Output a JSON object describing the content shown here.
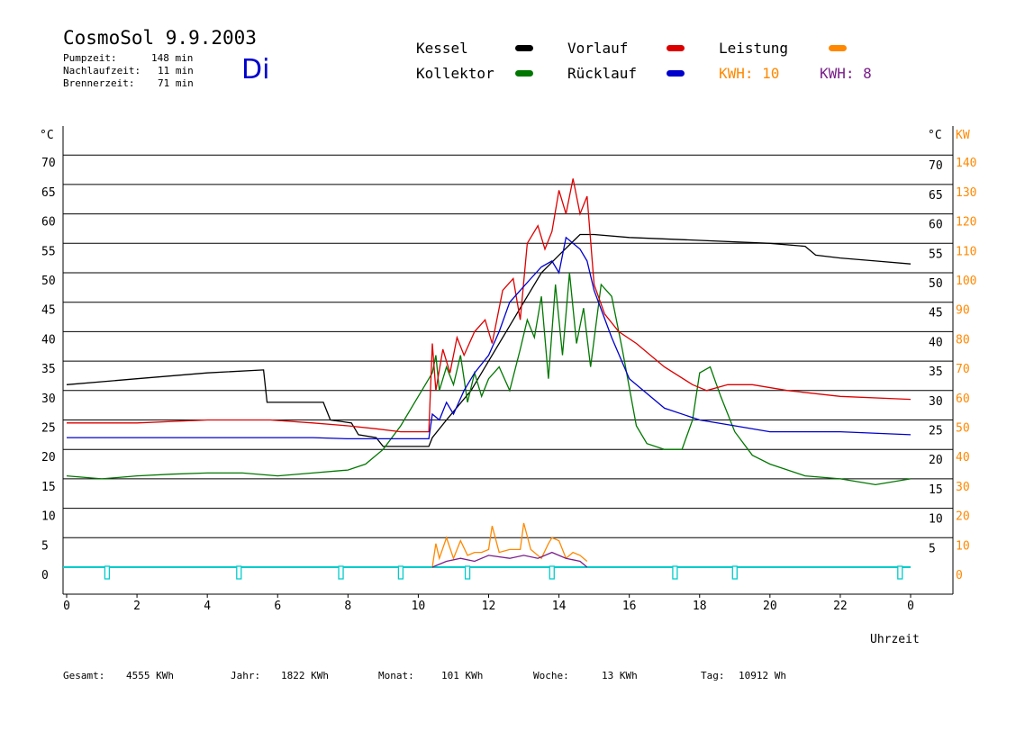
{
  "header": {
    "title": "CosmoSol 9.9.2003",
    "day": "Di",
    "stats": [
      {
        "label": "Pumpzeit:",
        "value": "148 min"
      },
      {
        "label": "Nachlaufzeit:",
        "value": "11 min"
      },
      {
        "label": "Brennerzeit:",
        "value": "71 min"
      }
    ]
  },
  "legend": {
    "kessel": "Kessel",
    "kollektor": "Kollektor",
    "vorlauf": "Vorlauf",
    "ruecklauf": "Rücklauf",
    "leistung": "Leistung",
    "kwh1": "KWH: 10",
    "kwh2": "KWH: 8"
  },
  "colors": {
    "kessel": "#000000",
    "kollektor": "#007700",
    "vorlauf": "#dd0000",
    "ruecklauf": "#0000cc",
    "leistung": "#ff8800",
    "kwh2": "#7a1f8a",
    "pump": "#00cccc"
  },
  "footer": [
    {
      "label": "Gesamt:",
      "value": "4555 KWh"
    },
    {
      "label": "Jahr:",
      "value": "1822 KWh"
    },
    {
      "label": "Monat:",
      "value": "101 KWh"
    },
    {
      "label": "Woche:",
      "value": "13 KWh"
    },
    {
      "label": "Tag:",
      "value": "10912 Wh"
    }
  ],
  "chart_data": {
    "type": "line",
    "xlabel": "Uhrzeit",
    "xlim": [
      0,
      24
    ],
    "x_ticks": [
      "0",
      "2",
      "4",
      "6",
      "8",
      "10",
      "12",
      "14",
      "16",
      "18",
      "20",
      "22",
      "0"
    ],
    "ylim": [
      0,
      75
    ],
    "y_ticks_left": [
      0,
      5,
      10,
      15,
      20,
      25,
      30,
      35,
      40,
      45,
      50,
      55,
      60,
      65,
      70
    ],
    "y_unit_left": "°C",
    "y_ticks_right_c": [
      5,
      10,
      15,
      20,
      25,
      30,
      35,
      40,
      45,
      50,
      55,
      60,
      65,
      70
    ],
    "y_unit_right_c": "°C",
    "y2_ticks_kw": [
      0,
      10,
      20,
      30,
      40,
      50,
      60,
      70,
      80,
      90,
      100,
      110,
      120,
      130,
      140
    ],
    "y2_unit": "KW",
    "grid": true,
    "series": [
      {
        "name": "Kessel",
        "x": [
          0,
          2,
          4,
          5.6,
          5.7,
          7.3,
          7.5,
          8.1,
          8.3,
          8.8,
          9.0,
          9.6,
          10.3,
          10.4,
          10.8,
          11.5,
          12.0,
          12.5,
          13.0,
          13.5,
          14.0,
          14.6,
          15.0,
          16.0,
          18.0,
          20.0,
          21.0,
          21.3,
          22.0,
          23.0,
          24.0
        ],
        "y": [
          31,
          32,
          33,
          33.5,
          28,
          28,
          25,
          24.5,
          22.5,
          22,
          20.5,
          20.5,
          20.5,
          22,
          25,
          30,
          35,
          40,
          45,
          50,
          53,
          56.5,
          56.5,
          56,
          55.5,
          55,
          54.5,
          53,
          52.5,
          52,
          51.5
        ]
      },
      {
        "name": "Kollektor",
        "x": [
          0,
          1,
          2,
          3,
          4,
          5,
          6,
          7,
          8,
          8.5,
          9,
          9.5,
          10,
          10.2,
          10.4,
          10.5,
          10.6,
          10.8,
          11,
          11.2,
          11.4,
          11.6,
          11.8,
          12,
          12.3,
          12.6,
          12.9,
          13.1,
          13.3,
          13.5,
          13.7,
          13.9,
          14.1,
          14.3,
          14.5,
          14.7,
          14.9,
          15.2,
          15.5,
          15.8,
          16.2,
          16.5,
          17,
          17.5,
          17.8,
          18,
          18.3,
          18.6,
          19,
          19.5,
          20,
          21,
          22,
          23,
          24
        ],
        "y": [
          15.5,
          15,
          15.5,
          15.8,
          16,
          16,
          15.5,
          16,
          16.5,
          17.5,
          20,
          24,
          29,
          31,
          33,
          36,
          30,
          34,
          31,
          36,
          28,
          33,
          29,
          32,
          34,
          30,
          37,
          42,
          39,
          46,
          32,
          48,
          36,
          50,
          38,
          44,
          34,
          48,
          46,
          37,
          24,
          21,
          20,
          20,
          25,
          33,
          34,
          29,
          23,
          19,
          17.5,
          15.5,
          15,
          14,
          15
        ]
      },
      {
        "name": "Vorlauf",
        "x": [
          0,
          2,
          4,
          5.8,
          7,
          8,
          8.8,
          9.5,
          10.3,
          10.4,
          10.5,
          10.7,
          10.9,
          11.1,
          11.3,
          11.6,
          11.9,
          12.1,
          12.4,
          12.7,
          12.9,
          13.1,
          13.4,
          13.6,
          13.8,
          14.0,
          14.2,
          14.4,
          14.6,
          14.8,
          15.0,
          15.3,
          15.7,
          16.2,
          17.0,
          17.8,
          18.2,
          18.8,
          19.5,
          20.5,
          22,
          24
        ],
        "y": [
          24.5,
          24.5,
          25,
          25,
          24.5,
          24,
          23.5,
          23,
          23,
          38,
          30,
          37,
          33,
          39,
          36,
          40,
          42,
          38,
          47,
          49,
          42,
          55,
          58,
          54,
          57,
          64,
          60,
          66,
          60,
          63,
          48,
          43,
          40,
          38,
          34,
          31,
          30,
          31,
          31,
          30,
          29,
          28.5
        ]
      },
      {
        "name": "Rücklauf",
        "x": [
          0,
          2,
          4,
          6,
          7,
          8,
          8.6,
          9,
          9.5,
          10.3,
          10.4,
          10.6,
          10.8,
          11,
          11.3,
          11.6,
          12,
          12.3,
          12.6,
          12.9,
          13.2,
          13.5,
          13.8,
          14.0,
          14.2,
          14.4,
          14.6,
          14.8,
          15.0,
          15.5,
          16.0,
          17.0,
          18.0,
          19.0,
          20.0,
          22.0,
          24.0
        ],
        "y": [
          22,
          22,
          22,
          22,
          22,
          21.8,
          21.8,
          21.8,
          21.8,
          21.8,
          26,
          25,
          28,
          26,
          30,
          33,
          36,
          40,
          45,
          47,
          49,
          51,
          52,
          50,
          56,
          55,
          54,
          52,
          47,
          39,
          32,
          27,
          25,
          24,
          23,
          23,
          22.5
        ]
      }
    ],
    "power_series": [
      {
        "name": "Leistung",
        "x": [
          10.4,
          10.5,
          10.6,
          10.8,
          11.0,
          11.2,
          11.4,
          11.6,
          11.8,
          12.0,
          12.1,
          12.3,
          12.6,
          12.9,
          13.0,
          13.2,
          13.5,
          13.7,
          13.8,
          14.0,
          14.2,
          14.4,
          14.6,
          14.8
        ],
        "kw": [
          0,
          8,
          3,
          10,
          3,
          9,
          4,
          5,
          5,
          6,
          14,
          5,
          6,
          6,
          15,
          6,
          3,
          8,
          10,
          9,
          3,
          5,
          4,
          2
        ]
      },
      {
        "name": "KWH: 8",
        "x": [
          10.4,
          10.8,
          11.2,
          11.6,
          12.0,
          12.6,
          13.0,
          13.4,
          13.8,
          14.2,
          14.6,
          14.8
        ],
        "kw": [
          0,
          2,
          3,
          2,
          4,
          3,
          4,
          3,
          5,
          3,
          2,
          0
        ]
      }
    ],
    "pump_markers_hours": [
      1.15,
      4.9,
      7.8,
      9.5,
      11.4,
      13.8,
      17.3,
      19.0,
      23.7
    ]
  }
}
